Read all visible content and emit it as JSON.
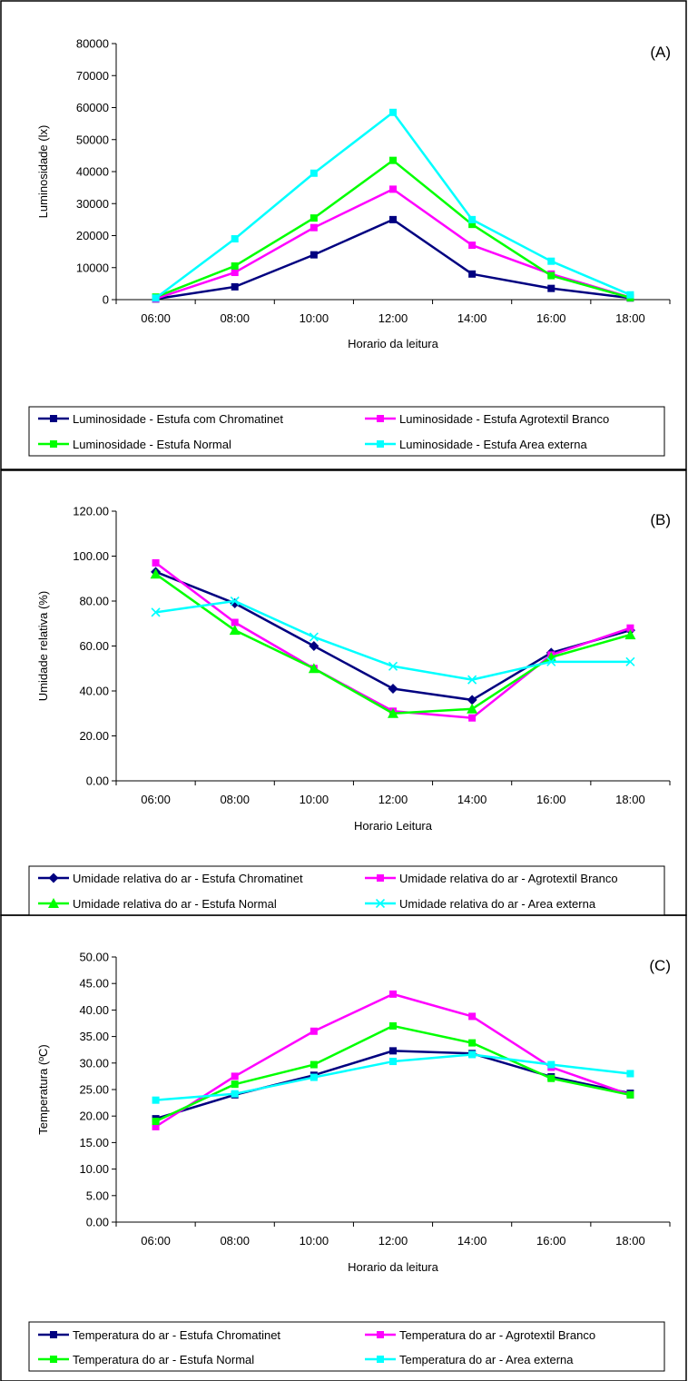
{
  "chart_data": [
    {
      "type": "line",
      "panel_label": "(A)",
      "xlabel": "Horario da leitura",
      "ylabel": "Luminosidade (lx)",
      "ylim": [
        0,
        80000
      ],
      "ystep": 10000,
      "ydecimals": 0,
      "grid": false,
      "legend_position": "bottom",
      "categories": [
        "06:00",
        "08:00",
        "10:00",
        "12:00",
        "14:00",
        "16:00",
        "18:00"
      ],
      "series": [
        {
          "name": "Luminosidade - Estufa com Chromatinet",
          "color": "#000080",
          "marker": "square",
          "values": [
            200,
            4000,
            14000,
            25000,
            8000,
            3500,
            500
          ]
        },
        {
          "name": "Luminosidade - Estufa Agrotextil Branco",
          "color": "#FF00FF",
          "marker": "square",
          "values": [
            300,
            8500,
            22500,
            34500,
            17000,
            8000,
            700
          ]
        },
        {
          "name": "Luminosidade - Estufa Normal",
          "color": "#00FF00",
          "marker": "square",
          "values": [
            800,
            10500,
            25500,
            43500,
            23500,
            7500,
            600
          ]
        },
        {
          "name": "Luminosidade - Estufa Area externa",
          "color": "#00FFFF",
          "marker": "square",
          "values": [
            500,
            19000,
            39500,
            58500,
            25000,
            12000,
            1500
          ]
        }
      ]
    },
    {
      "type": "line",
      "panel_label": "(B)",
      "xlabel": "Horario Leitura",
      "ylabel": "Umidade relativa (%)",
      "ylim": [
        0,
        120
      ],
      "ystep": 20,
      "ydecimals": 2,
      "grid": false,
      "legend_position": "bottom",
      "categories": [
        "06:00",
        "08:00",
        "10:00",
        "12:00",
        "14:00",
        "16:00",
        "18:00"
      ],
      "series": [
        {
          "name": "Umidade relativa do ar - Estufa Chromatinet",
          "color": "#000080",
          "marker": "diamond",
          "values": [
            93,
            79,
            60,
            41,
            36,
            57,
            67
          ]
        },
        {
          "name": "Umidade relativa do ar - Agrotextil Branco",
          "color": "#FF00FF",
          "marker": "square",
          "values": [
            97,
            70.5,
            50,
            31,
            28,
            56,
            68
          ]
        },
        {
          "name": "Umidade relativa do ar - Estufa Normal",
          "color": "#00FF00",
          "marker": "triangle",
          "values": [
            92,
            67,
            50,
            30,
            32,
            55,
            65
          ]
        },
        {
          "name": "Umidade relativa do ar - Area externa",
          "color": "#00FFFF",
          "marker": "x",
          "values": [
            75,
            80,
            64,
            51,
            45,
            53,
            53
          ]
        }
      ]
    },
    {
      "type": "line",
      "panel_label": "(C)",
      "xlabel": "Horario da leitura",
      "ylabel": "Temperatura (ºC)",
      "ylim": [
        0,
        50
      ],
      "ystep": 5,
      "ydecimals": 2,
      "grid": false,
      "legend_position": "bottom",
      "categories": [
        "06:00",
        "08:00",
        "10:00",
        "12:00",
        "14:00",
        "16:00",
        "18:00"
      ],
      "series": [
        {
          "name": "Temperatura do ar - Estufa Chromatinet",
          "color": "#000080",
          "marker": "square",
          "values": [
            19.5,
            24,
            27.7,
            32.3,
            31.8,
            27.4,
            24.3
          ]
        },
        {
          "name": "Temperatura do ar - Agrotextil Branco",
          "color": "#FF00FF",
          "marker": "square",
          "values": [
            18,
            27.5,
            36,
            43,
            38.8,
            29.2,
            24
          ]
        },
        {
          "name": "Temperatura do ar - Estufa Normal",
          "color": "#00FF00",
          "marker": "square",
          "values": [
            19,
            26,
            29.7,
            37,
            33.8,
            27.1,
            24
          ]
        },
        {
          "name": "Temperatura do ar - Area externa",
          "color": "#00FFFF",
          "marker": "square",
          "values": [
            23,
            24.2,
            27.3,
            30.3,
            31.6,
            29.7,
            28
          ]
        }
      ]
    }
  ]
}
